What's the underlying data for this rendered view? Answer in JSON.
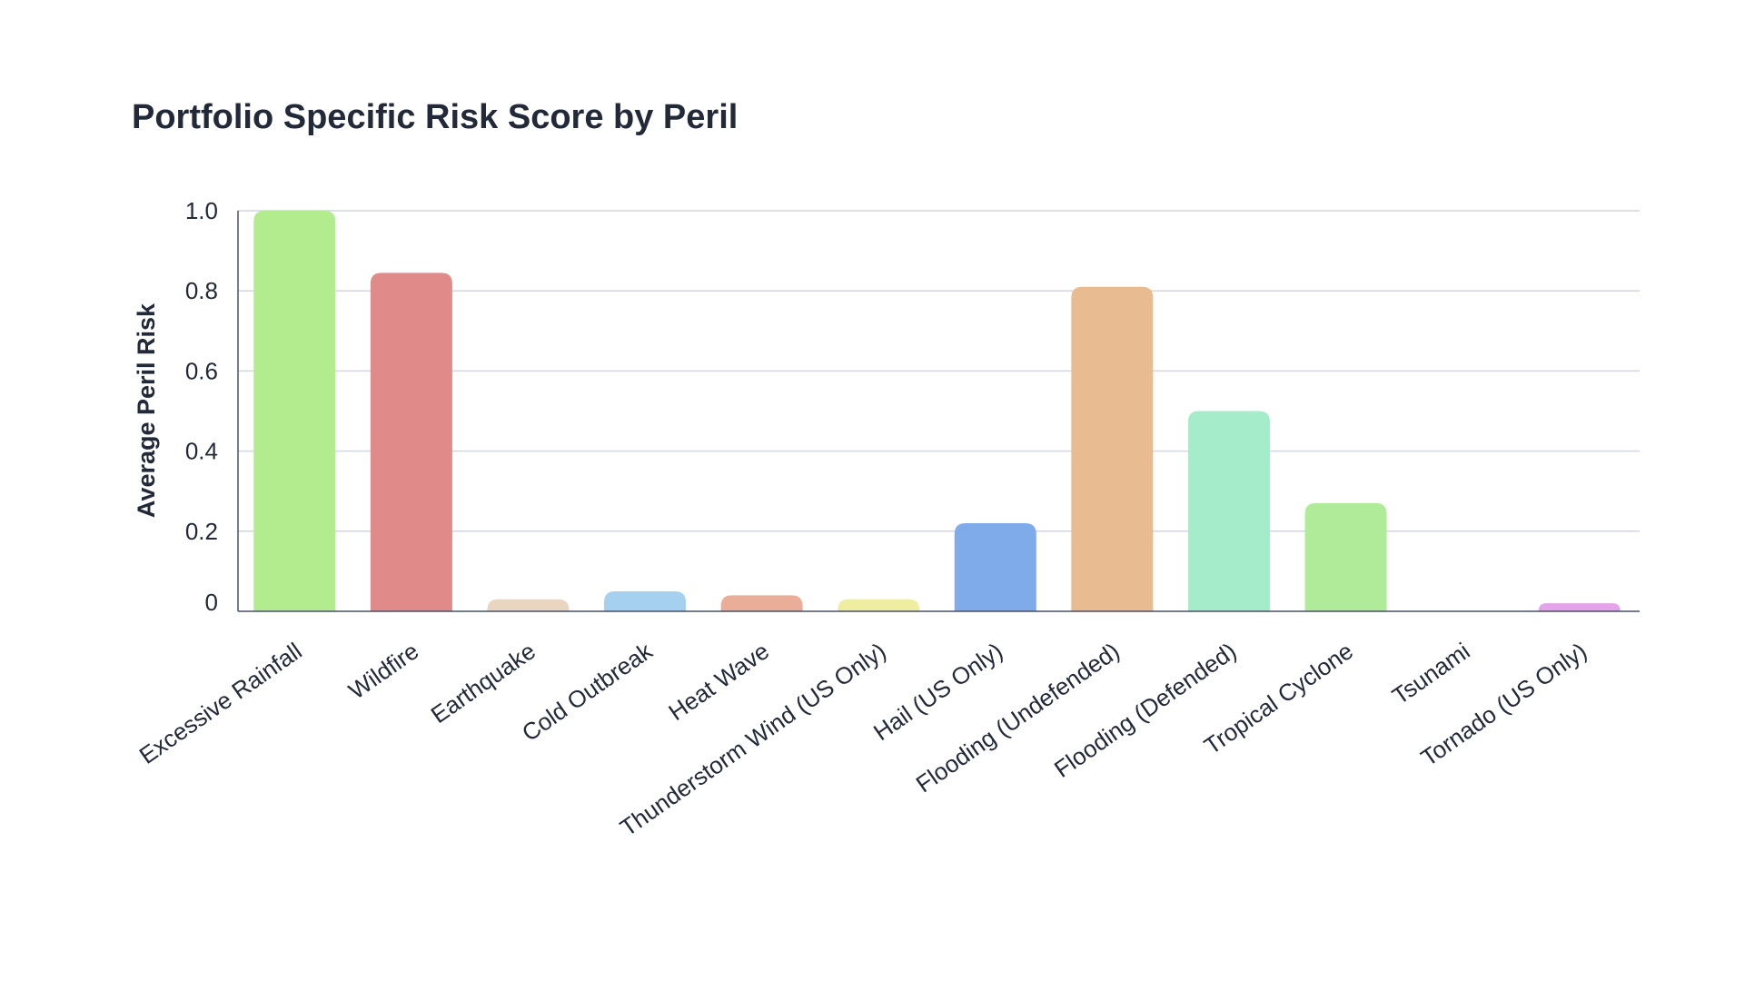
{
  "chart_data": {
    "type": "bar",
    "title": "Portfolio Specific Risk Score by Peril",
    "xlabel": "",
    "ylabel": "Average Peril Risk",
    "ylim": [
      0,
      1.0
    ],
    "yticks": [
      {
        "value": 0,
        "label": "0"
      },
      {
        "value": 0.2,
        "label": "0.2"
      },
      {
        "value": 0.4,
        "label": "0.4"
      },
      {
        "value": 0.6,
        "label": "0.6"
      },
      {
        "value": 0.8,
        "label": "0.8"
      },
      {
        "value": 1.0,
        "label": "1.0"
      }
    ],
    "grid": true,
    "legend": "none",
    "categories": [
      "Excessive Rainfall",
      "Wildfire",
      "Earthquake",
      "Cold Outbreak",
      "Heat Wave",
      "Thunderstorm Wind (US Only)",
      "Hail (US Only)",
      "Flooding (Undefended)",
      "Flooding (Defended)",
      "Tropical Cyclone",
      "Tsunami",
      "Tornado (US Only)"
    ],
    "values": [
      1.0,
      0.845,
      0.03,
      0.05,
      0.04,
      0.03,
      0.22,
      0.81,
      0.5,
      0.27,
      0.0,
      0.02
    ],
    "colors": [
      "#b3ec8f",
      "#e08a8a",
      "#ead5c0",
      "#a5d0f0",
      "#e9ad98",
      "#efeda0",
      "#7fabeb",
      "#e8bb90",
      "#a4ecca",
      "#b0eb99",
      "#c8c8c8",
      "#e5a3ea"
    ]
  }
}
